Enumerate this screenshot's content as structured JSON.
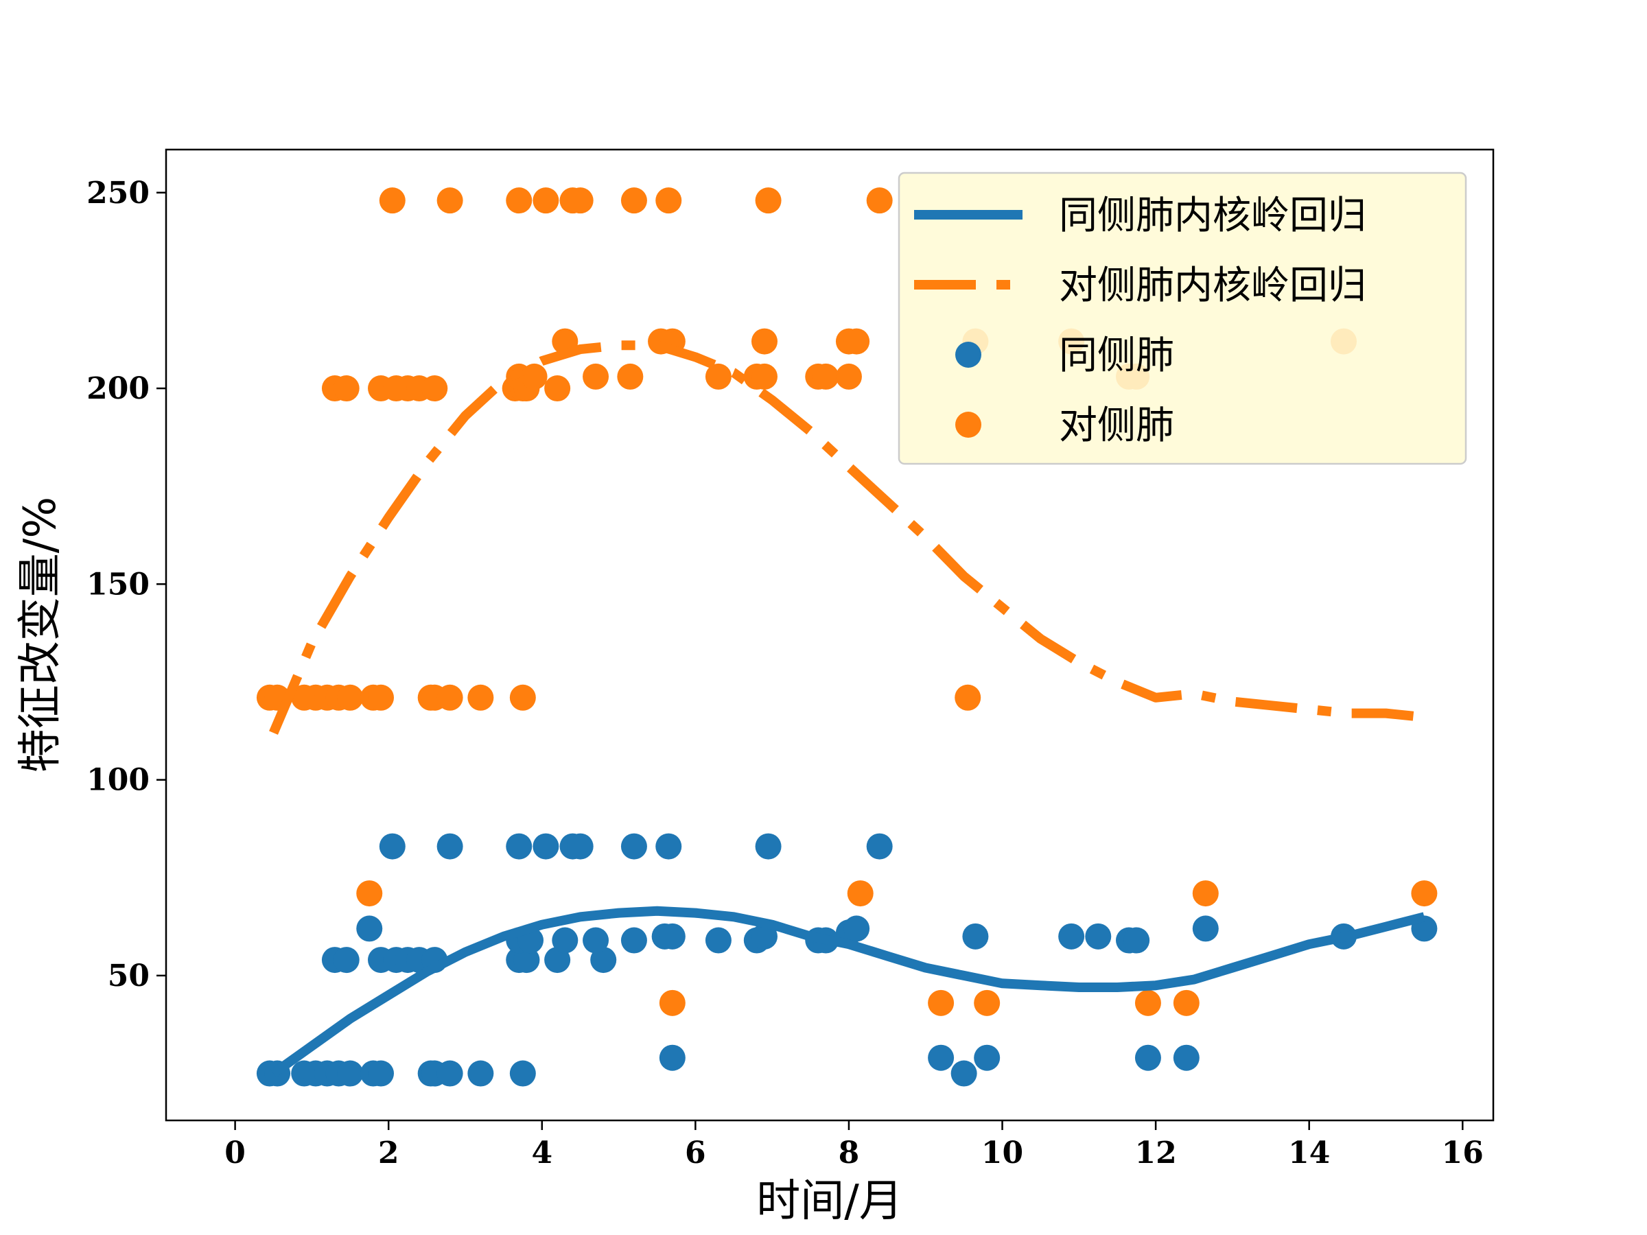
{
  "chart_data": {
    "type": "scatter",
    "title": "",
    "xlabel": "时间/月",
    "ylabel": "特征改变量/%",
    "xlim": [
      -0.9,
      16.4
    ],
    "ylim": [
      13,
      261
    ],
    "xticks": [
      0,
      2,
      4,
      6,
      8,
      10,
      12,
      14,
      16
    ],
    "yticks": [
      50,
      100,
      150,
      200,
      250
    ],
    "grid": false,
    "legend_position": "top-right",
    "series": [
      {
        "name": "同侧肺内核岭回归",
        "kind": "line",
        "style": "solid",
        "color": "#1f77b4",
        "x": [
          0.5,
          1,
          1.5,
          2,
          2.5,
          3,
          3.5,
          4,
          4.5,
          5,
          5.5,
          6,
          6.5,
          7,
          7.5,
          8,
          8.5,
          9,
          9.5,
          10,
          10.5,
          11,
          11.5,
          12,
          12.5,
          13,
          13.5,
          14,
          14.5,
          15,
          15.5
        ],
        "y": [
          25,
          32,
          39,
          45,
          51,
          56,
          60,
          63,
          65,
          66,
          66.5,
          66,
          65,
          63,
          60,
          58,
          55,
          52,
          50,
          48,
          47.5,
          47,
          47,
          47.5,
          49,
          52,
          55,
          58,
          60,
          62.5,
          65
        ]
      },
      {
        "name": "对侧肺内核岭回归",
        "kind": "line",
        "style": "dashdot",
        "color": "#ff7f0e",
        "x": [
          0.5,
          1,
          1.5,
          2,
          2.5,
          3,
          3.5,
          4,
          4.5,
          5,
          5.5,
          6,
          6.5,
          7,
          7.5,
          8,
          8.5,
          9,
          9.5,
          10,
          10.5,
          11,
          11.5,
          12,
          12.5,
          13,
          13.5,
          14,
          14.5,
          15,
          15.5
        ],
        "y": [
          112,
          135,
          152,
          167,
          181,
          193,
          202,
          207,
          210,
          211,
          211,
          208,
          204,
          197,
          189,
          180,
          171,
          162,
          152,
          144,
          136,
          130,
          125,
          121,
          122,
          120,
          119,
          118,
          117,
          117,
          116
        ]
      },
      {
        "name": "同侧肺",
        "kind": "scatter",
        "color": "#1f77b4",
        "x": [
          0.45,
          0.55,
          0.9,
          1.05,
          1.2,
          1.35,
          1.5,
          1.8,
          1.9,
          2.55,
          2.6,
          2.8,
          3.2,
          3.75,
          1.3,
          1.45,
          1.9,
          2.1,
          2.25,
          2.4,
          2.6,
          3.7,
          3.8,
          4.2,
          4.8,
          1.75,
          3.7,
          3.85,
          4.3,
          4.7,
          5.2,
          5.6,
          5.7,
          6.3,
          6.8,
          6.9,
          7.6,
          7.7,
          8.0,
          8.1,
          9.65,
          10.9,
          11.25,
          11.65,
          11.75,
          12.65,
          14.45,
          15.5,
          2.05,
          2.8,
          3.7,
          4.05,
          4.4,
          4.5,
          5.2,
          5.65,
          6.95,
          8.4,
          5.7,
          9.2,
          9.5,
          9.8,
          11.9,
          12.4
        ],
        "y": [
          25,
          25,
          25,
          25,
          25,
          25,
          25,
          25,
          25,
          25,
          25,
          25,
          25,
          25,
          54,
          54,
          54,
          54,
          54,
          54,
          54,
          54,
          54,
          54,
          54,
          62,
          59,
          59,
          59,
          59,
          59,
          60,
          60,
          59,
          59,
          60,
          59,
          59,
          61,
          62,
          60,
          60,
          60,
          59,
          59,
          62,
          60,
          62,
          83,
          83,
          83,
          83,
          83,
          83,
          83,
          83,
          83,
          83,
          29,
          29,
          25,
          29,
          29,
          29
        ]
      },
      {
        "name": "对侧肺",
        "kind": "scatter",
        "color": "#ff7f0e",
        "x": [
          0.45,
          0.55,
          0.9,
          1.05,
          1.2,
          1.35,
          1.5,
          1.8,
          1.9,
          2.55,
          2.6,
          2.8,
          3.2,
          3.75,
          9.55,
          1.3,
          1.45,
          1.9,
          2.1,
          2.25,
          2.4,
          2.6,
          3.65,
          3.75,
          3.8,
          4.2,
          3.7,
          3.9,
          4.7,
          5.15,
          6.3,
          6.8,
          6.9,
          7.6,
          7.7,
          8.0,
          11.65,
          11.75,
          4.3,
          5.55,
          5.7,
          6.9,
          8.0,
          8.1,
          9.65,
          10.9,
          14.45,
          2.05,
          2.8,
          3.7,
          4.05,
          4.4,
          4.5,
          5.2,
          5.65,
          6.95,
          8.4,
          1.75,
          8.15,
          12.65,
          15.5,
          5.7,
          9.2,
          9.8,
          11.9,
          12.4
        ],
        "y": [
          121,
          121,
          121,
          121,
          121,
          121,
          121,
          121,
          121,
          121,
          121,
          121,
          121,
          121,
          121,
          200,
          200,
          200,
          200,
          200,
          200,
          200,
          200,
          200,
          200,
          200,
          203,
          203,
          203,
          203,
          203,
          203,
          203,
          203,
          203,
          203,
          203,
          203,
          212,
          212,
          212,
          212,
          212,
          212,
          212,
          212,
          212,
          248,
          248,
          248,
          248,
          248,
          248,
          248,
          248,
          248,
          248,
          71,
          71,
          71,
          71,
          43,
          43,
          43,
          43,
          43
        ]
      }
    ]
  }
}
